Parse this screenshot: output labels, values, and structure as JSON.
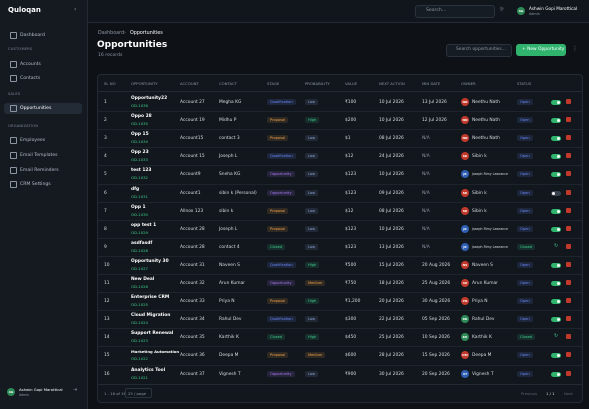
{
  "sidebar": {
    "logo": "Quloqan",
    "nav": [
      {
        "label": "Dashboard"
      },
      {
        "section": "CUSTOMERS"
      },
      {
        "label": "Accounts"
      },
      {
        "label": "Contacts"
      },
      {
        "section": "SALES"
      },
      {
        "label": "Opportunities",
        "active": true
      },
      {
        "section": "ORGANIZATION"
      },
      {
        "label": "Employees"
      },
      {
        "label": "Email Templates"
      },
      {
        "label": "Email Reminders"
      },
      {
        "label": "CRM Settings"
      }
    ],
    "user": {
      "initials": "AG",
      "name": "Ashwin Gopi Marottical",
      "role": "Admin"
    }
  },
  "topbar": {
    "search": "Search...",
    "user": {
      "initials": "AG",
      "name": "Ashwin Gopi Marottical",
      "role": "Admin"
    }
  },
  "header": {
    "breadcrumb": [
      "Dashboard",
      "Opportunities"
    ],
    "title": "Opportunities",
    "subtitle": "16 records",
    "search": "Search opportunities...",
    "button": "+ New Opportunity"
  },
  "table": {
    "columns": [
      "SL NO",
      "OPPORTUNITY",
      "ACCOUNT",
      "CONTACT",
      "STAGE",
      "PROBABILITY",
      "VALUE",
      "NEXT ACTION",
      "MIN DATE",
      "OWNER",
      "STATUS"
    ],
    "stage_colors": {
      "Qualification": "#6b8cff",
      "Proposal": "#f0a24a",
      "Opportunity": "#a97cf5",
      "Closed": "#3ecf8e"
    },
    "probability_colors": {
      "Low": "#8fa8d8",
      "High": "#3ecf8e",
      "Medium": "#f0a24a"
    },
    "rows": [
      [
        "1",
        "Opportunity22",
        "OD-1036",
        "Account 27",
        "Megha KG",
        "Qualification",
        "Low",
        "₹100",
        "10 Jul 2026",
        "13 Jul 2026",
        "NN",
        "Neethu Nath",
        "Open",
        true,
        "#c0392b"
      ],
      [
        "2",
        "Oppo 28",
        "OD-1035",
        "Account 19",
        "Midhu P",
        "Proposal",
        "High",
        "$200",
        "10 Jul 2026",
        "12 Jul 2026",
        "NN",
        "Neethu Nath",
        "Open",
        true,
        "#c0392b"
      ],
      [
        "3",
        "Opp 15",
        "OD-1034",
        "Account15",
        "contact 3",
        "Proposal",
        "Low",
        "$1",
        "08 Jul 2026",
        "N/A",
        "NN",
        "Neethu Nath",
        "Open",
        true,
        "#c0392b"
      ],
      [
        "4",
        "Opp 23",
        "OD-1033",
        "Account 15",
        "Joseph L",
        "Qualification",
        "Low",
        "$12",
        "24 Jul 2026",
        "N/A",
        "SK",
        "Sibin k",
        "Open",
        true,
        "#c0392b"
      ],
      [
        "5",
        "test 123",
        "OD-1032",
        "Account9",
        "Sneha KG",
        "Opportunity",
        "Low",
        "$123",
        "10 Jul 2026",
        "N/A",
        "JR",
        "Joseph Rimy Lawrance",
        "Open",
        true,
        "#2f5fb3"
      ],
      [
        "6",
        "dfg",
        "OD-1031",
        "Account1",
        "sibin k (Personal)",
        "Opportunity",
        "Low",
        "$123",
        "09 Jul 2026",
        "N/A",
        "SK",
        "Sibin k",
        "Open",
        false,
        "#c0392b"
      ],
      [
        "7",
        "Opp 1",
        "OD-1030",
        "Allnox 123",
        "sibin k",
        "Proposal",
        "Low",
        "$12",
        "08 Jul 2026",
        "N/A",
        "SK",
        "Sibin k",
        "Open",
        true,
        "#c0392b"
      ],
      [
        "8",
        "opp test 1",
        "OD-1029",
        "Account 28",
        "Joseph L",
        "Proposal",
        "Low",
        "$123",
        "10 Jul 2026",
        "N/A",
        "JR",
        "Joseph Rimy Lawrance",
        "Open",
        true,
        "#2f5fb3"
      ],
      [
        "9",
        "asdfasdf",
        "OD-1028",
        "Account 28",
        "contact 4",
        "Closed",
        "Low",
        "$123",
        "13 Jul 2026",
        "N/A",
        "JR",
        "Joseph Rimy Lawrance",
        "Closed",
        null,
        "#2f5fb3"
      ],
      [
        "10",
        "Opportunity 30",
        "OD-1027",
        "Account 31",
        "Naveen S",
        "Qualification",
        "High",
        "₹500",
        "15 Jul 2026",
        "20 Aug 2026",
        "NS",
        "Naveen S",
        "Open",
        true,
        "#c0392b"
      ],
      [
        "11",
        "New Deal",
        "OD-1026",
        "Account 32",
        "Arun Kumar",
        "Opportunity",
        "Medium",
        "₹750",
        "18 Jul 2026",
        "25 Aug 2026",
        "AK",
        "Arun Kumar",
        "Open",
        true,
        "#c0392b"
      ],
      [
        "12",
        "Enterprise CRM",
        "OD-1025",
        "Account 33",
        "Priya N",
        "Proposal",
        "High",
        "₹1,200",
        "20 Jul 2026",
        "30 Aug 2026",
        "PN",
        "Priya N",
        "Open",
        true,
        "#c0392b"
      ],
      [
        "13",
        "Cloud Migration",
        "OD-1024",
        "Account 34",
        "Rahul Dev",
        "Qualification",
        "Low",
        "$300",
        "22 Jul 2026",
        "05 Sep 2026",
        "RD",
        "Rahul Dev",
        "Open",
        true,
        "#2e8b57"
      ],
      [
        "14",
        "Support Renewal",
        "OD-1023",
        "Account 35",
        "Karthik K",
        "Closed",
        "High",
        "$450",
        "25 Jul 2026",
        "10 Sep 2026",
        "KK",
        "Karthik K",
        "Closed",
        null,
        "#2e8b57"
      ],
      [
        "15",
        "Marketing Automation",
        "OD-1022",
        "Account 36",
        "Deepa M",
        "Proposal",
        "Medium",
        "$600",
        "28 Jul 2026",
        "15 Sep 2026",
        "DM",
        "Deepa M",
        "Open",
        true,
        "#c0392b"
      ],
      [
        "16",
        "Analytics Tool",
        "OD-1021",
        "Account 37",
        "Vignesh T",
        "Opportunity",
        "Low",
        "₹900",
        "30 Jul 2026",
        "20 Sep 2026",
        "VT",
        "Vignesh T",
        "Open",
        true,
        "#2f5fb3"
      ]
    ]
  },
  "footer": {
    "range": "1 - 16 of 16",
    "page_size": "25 / page",
    "previous": "Previous",
    "pages": "1 / 1",
    "next": "Next"
  }
}
